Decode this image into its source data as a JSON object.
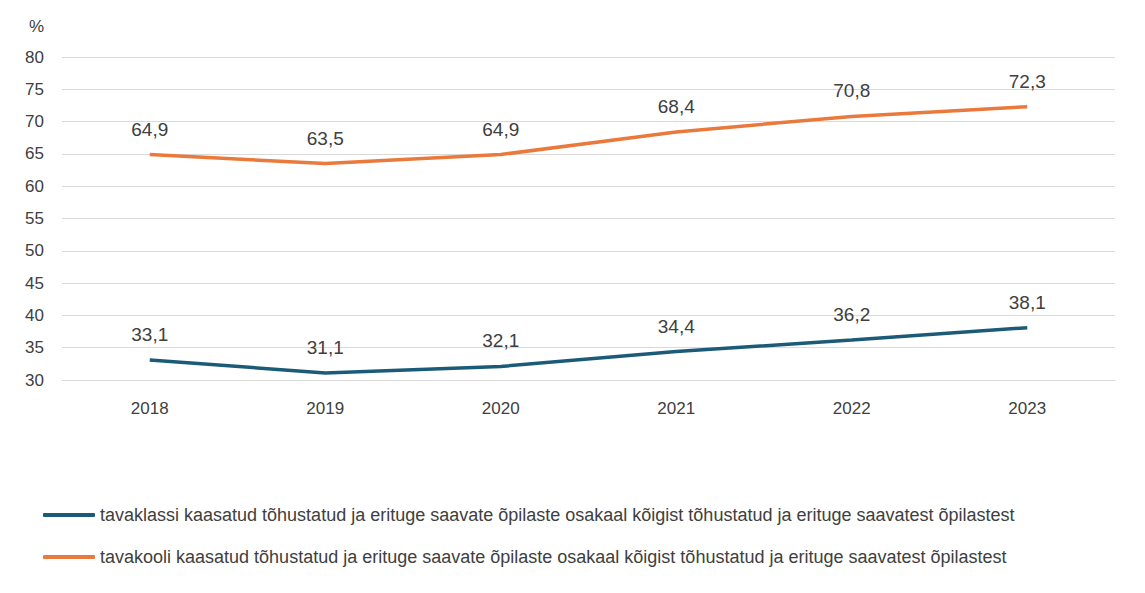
{
  "chart_data": {
    "type": "line",
    "categories": [
      "2018",
      "2019",
      "2020",
      "2021",
      "2022",
      "2023"
    ],
    "series": [
      {
        "name": "tavaklassi kaasatud tõhustatud ja erituge saavate õpilaste osakaal kõigist tõhustatud ja erituge saavatest õpilastest",
        "color": "#1b5b78",
        "values": [
          33.1,
          31.1,
          32.1,
          34.4,
          36.2,
          38.1
        ],
        "value_labels": [
          "33,1",
          "31,1",
          "32,1",
          "34,4",
          "36,2",
          "38,1"
        ]
      },
      {
        "name": "tavakooli kaasatud tõhustatud ja erituge saavate õpilaste osakaal kõigist tõhustatud ja erituge saavatest õpilastest",
        "color": "#e97a3c",
        "values": [
          64.9,
          63.5,
          64.9,
          68.4,
          70.8,
          72.3
        ],
        "value_labels": [
          "64,9",
          "63,5",
          "64,9",
          "68,4",
          "70,8",
          "72,3"
        ]
      }
    ],
    "y_label": "%",
    "ylim": [
      30,
      80
    ],
    "yticks": [
      30,
      35,
      40,
      45,
      50,
      55,
      60,
      65,
      70,
      75,
      80
    ],
    "grid": true,
    "legend": "bottom",
    "data_labels": true
  }
}
